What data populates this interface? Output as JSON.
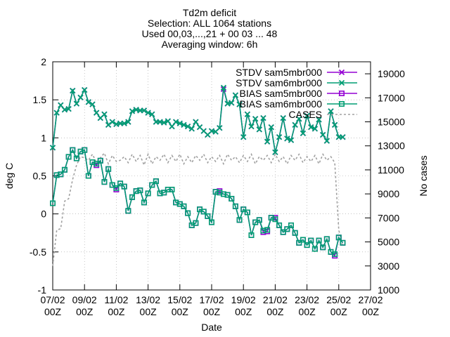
{
  "chart_data": {
    "type": "line",
    "title_lines": [
      "Td2m deficit",
      "Selection: ALL   1064 stations",
      "Used 00,03,...,21 + 00 03 ... 48",
      "Averaging window:  6h"
    ],
    "xlabel": "Date",
    "ylabel": "deg C",
    "y2label": "No cases",
    "xlim": [
      "2023-02-07 00:00",
      "2023-02-27 00:00"
    ],
    "ylim": [
      -1,
      2
    ],
    "y2lim": [
      1000,
      20000
    ],
    "x_tick_labels": [
      [
        "07/02",
        "00Z"
      ],
      [
        "09/02",
        "00Z"
      ],
      [
        "11/02",
        "00Z"
      ],
      [
        "13/02",
        "00Z"
      ],
      [
        "15/02",
        "00Z"
      ],
      [
        "17/02",
        "00Z"
      ],
      [
        "19/02",
        "00Z"
      ],
      [
        "21/02",
        "00Z"
      ],
      [
        "23/02",
        "00Z"
      ],
      [
        "25/02",
        "00Z"
      ],
      [
        "27/02",
        "00Z"
      ]
    ],
    "y_tick_labels": [
      "-1",
      "-0.5",
      "0",
      "0.5",
      "1",
      "1.5",
      "2"
    ],
    "y2_tick_labels": [
      "1000",
      "3000",
      "5000",
      "7000",
      "9000",
      "11000",
      "13000",
      "15000",
      "17000",
      "19000"
    ],
    "grid": true,
    "legend_position": "top-right",
    "x": [
      "2023-02-07 00:00",
      "2023-02-07 06:00",
      "2023-02-07 12:00",
      "2023-02-07 18:00",
      "2023-02-08 00:00",
      "2023-02-08 06:00",
      "2023-02-08 12:00",
      "2023-02-08 18:00",
      "2023-02-09 00:00",
      "2023-02-09 06:00",
      "2023-02-09 12:00",
      "2023-02-09 18:00",
      "2023-02-10 00:00",
      "2023-02-10 06:00",
      "2023-02-10 12:00",
      "2023-02-10 18:00",
      "2023-02-11 00:00",
      "2023-02-11 06:00",
      "2023-02-11 12:00",
      "2023-02-11 18:00",
      "2023-02-12 00:00",
      "2023-02-12 06:00",
      "2023-02-12 12:00",
      "2023-02-12 18:00",
      "2023-02-13 00:00",
      "2023-02-13 06:00",
      "2023-02-13 12:00",
      "2023-02-13 18:00",
      "2023-02-14 00:00",
      "2023-02-14 06:00",
      "2023-02-14 12:00",
      "2023-02-14 18:00",
      "2023-02-15 00:00",
      "2023-02-15 06:00",
      "2023-02-15 12:00",
      "2023-02-15 18:00",
      "2023-02-16 00:00",
      "2023-02-16 06:00",
      "2023-02-16 12:00",
      "2023-02-16 18:00",
      "2023-02-17 00:00",
      "2023-02-17 06:00",
      "2023-02-17 12:00",
      "2023-02-17 18:00",
      "2023-02-18 00:00",
      "2023-02-18 06:00",
      "2023-02-18 12:00",
      "2023-02-18 18:00",
      "2023-02-19 00:00",
      "2023-02-19 06:00",
      "2023-02-19 12:00",
      "2023-02-19 18:00",
      "2023-02-20 00:00",
      "2023-02-20 06:00",
      "2023-02-20 12:00",
      "2023-02-20 18:00",
      "2023-02-21 00:00",
      "2023-02-21 06:00",
      "2023-02-21 12:00",
      "2023-02-21 18:00",
      "2023-02-22 00:00",
      "2023-02-22 06:00",
      "2023-02-22 12:00",
      "2023-02-22 18:00",
      "2023-02-23 00:00",
      "2023-02-23 06:00",
      "2023-02-23 12:00",
      "2023-02-23 18:00",
      "2023-02-24 00:00",
      "2023-02-24 06:00",
      "2023-02-24 12:00",
      "2023-02-24 18:00",
      "2023-02-25 00:00",
      "2023-02-25 06:00"
    ],
    "series": [
      {
        "name": "STDV sam5mbr000",
        "axis": "y",
        "color": "#9400d3",
        "marker": "x",
        "values": [
          0.87,
          1.33,
          1.43,
          1.37,
          1.38,
          1.62,
          1.45,
          1.53,
          1.63,
          1.47,
          1.44,
          1.33,
          1.26,
          1.31,
          1.17,
          1.21,
          1.18,
          1.19,
          1.19,
          1.21,
          1.35,
          1.37,
          1.36,
          1.36,
          1.33,
          1.31,
          1.21,
          1.21,
          1.2,
          1.22,
          1.15,
          1.21,
          1.19,
          1.17,
          1.15,
          1.12,
          1.21,
          1.14,
          1.09,
          1.04,
          1.09,
          1.08,
          1.13,
          1.64,
          1.45,
          1.46,
          1.56,
          1.44,
          1.01,
          1.31,
          1.15,
          1.25,
          1.11,
          1.26,
          0.95,
          1.14,
          0.81,
          1.01,
          1.26,
          0.99,
          0.97,
          1.17,
          1.25,
          1.06,
          1.29,
          1.14,
          1.12,
          1.24,
          1.04,
          0.96,
          1.35,
          1.17,
          1.01,
          1.01
        ]
      },
      {
        "name": "STDV sam6mbr000",
        "axis": "y",
        "color": "#009e73",
        "marker": "x",
        "values": [
          0.87,
          1.33,
          1.43,
          1.37,
          1.38,
          1.62,
          1.45,
          1.53,
          1.63,
          1.47,
          1.44,
          1.33,
          1.26,
          1.31,
          1.17,
          1.21,
          1.18,
          1.19,
          1.19,
          1.21,
          1.35,
          1.37,
          1.36,
          1.36,
          1.33,
          1.31,
          1.21,
          1.21,
          1.2,
          1.22,
          1.15,
          1.21,
          1.19,
          1.17,
          1.15,
          1.12,
          1.21,
          1.14,
          1.09,
          1.04,
          1.09,
          1.08,
          1.13,
          1.66,
          1.45,
          1.46,
          1.56,
          1.44,
          1.01,
          1.31,
          1.15,
          1.25,
          1.11,
          1.26,
          0.95,
          1.14,
          0.81,
          1.01,
          1.26,
          0.99,
          0.97,
          1.17,
          1.25,
          1.06,
          1.29,
          1.14,
          1.12,
          1.24,
          1.04,
          0.96,
          1.35,
          1.17,
          1.01,
          1.01
        ]
      },
      {
        "name": "BIAS sam5mbr000",
        "axis": "y",
        "color": "#9400d3",
        "marker": "square",
        "values": [
          0.14,
          0.51,
          0.52,
          0.58,
          0.75,
          0.84,
          0.73,
          0.82,
          0.84,
          0.5,
          0.68,
          0.64,
          0.7,
          0.42,
          0.59,
          0.38,
          0.32,
          0.4,
          0.36,
          0.04,
          0.22,
          0.3,
          0.31,
          0.15,
          0.27,
          0.38,
          0.43,
          0.27,
          0.28,
          0.32,
          0.32,
          0.15,
          0.13,
          0.1,
          0.01,
          -0.15,
          -0.12,
          0.06,
          0.03,
          -0.03,
          -0.11,
          0.29,
          0.3,
          0.26,
          0.25,
          0.2,
          0.1,
          -0.08,
          0.06,
          0.02,
          -0.28,
          -0.11,
          -0.08,
          -0.24,
          -0.23,
          -0.05,
          -0.05,
          -0.15,
          -0.24,
          -0.2,
          -0.15,
          -0.25,
          -0.38,
          -0.34,
          -0.41,
          -0.35,
          -0.46,
          -0.35,
          -0.44,
          -0.33,
          -0.5,
          -0.55,
          -0.31,
          -0.38
        ]
      },
      {
        "name": "BIAS sam6mbr000",
        "axis": "y",
        "color": "#009e73",
        "marker": "square",
        "values": [
          0.14,
          0.51,
          0.52,
          0.58,
          0.75,
          0.84,
          0.73,
          0.82,
          0.84,
          0.5,
          0.68,
          0.66,
          0.7,
          0.42,
          0.59,
          0.38,
          0.34,
          0.4,
          0.36,
          0.04,
          0.22,
          0.3,
          0.31,
          0.15,
          0.27,
          0.38,
          0.43,
          0.27,
          0.28,
          0.32,
          0.32,
          0.15,
          0.13,
          0.1,
          0.01,
          -0.15,
          -0.12,
          0.06,
          0.03,
          -0.03,
          -0.11,
          0.29,
          0.28,
          0.26,
          0.25,
          0.2,
          0.1,
          -0.08,
          0.06,
          0.02,
          -0.28,
          -0.11,
          -0.08,
          -0.22,
          -0.21,
          -0.05,
          -0.07,
          -0.15,
          -0.24,
          -0.2,
          -0.15,
          -0.25,
          -0.38,
          -0.34,
          -0.41,
          -0.35,
          -0.46,
          -0.35,
          -0.44,
          -0.33,
          -0.5,
          -0.53,
          -0.31,
          -0.38
        ]
      },
      {
        "name": "CASES",
        "axis": "y2",
        "color": "#a0a0a0",
        "marker": "none",
        "dashed": true,
        "values": [
          3000,
          6000,
          6100,
          8400,
          8600,
          10200,
          11400,
          12100,
          12000,
          11800,
          12300,
          11600,
          12000,
          12400,
          11500,
          12200,
          11700,
          11800,
          12100,
          11600,
          12300,
          11700,
          12200,
          11400,
          12300,
          11500,
          12100,
          11800,
          12300,
          11600,
          12200,
          11700,
          12300,
          11500,
          12100,
          11600,
          12200,
          11800,
          12300,
          11600,
          12100,
          11700,
          12200,
          11500,
          12300,
          11800,
          12100,
          11600,
          12200,
          11700,
          12300,
          11500,
          12100,
          11800,
          12200,
          11600,
          12300,
          11700,
          12100,
          11500,
          12200,
          11800,
          12300,
          11600,
          12100,
          11700,
          12200,
          11500,
          12300,
          11800,
          12100,
          11600,
          6000,
          4600
        ]
      }
    ]
  }
}
